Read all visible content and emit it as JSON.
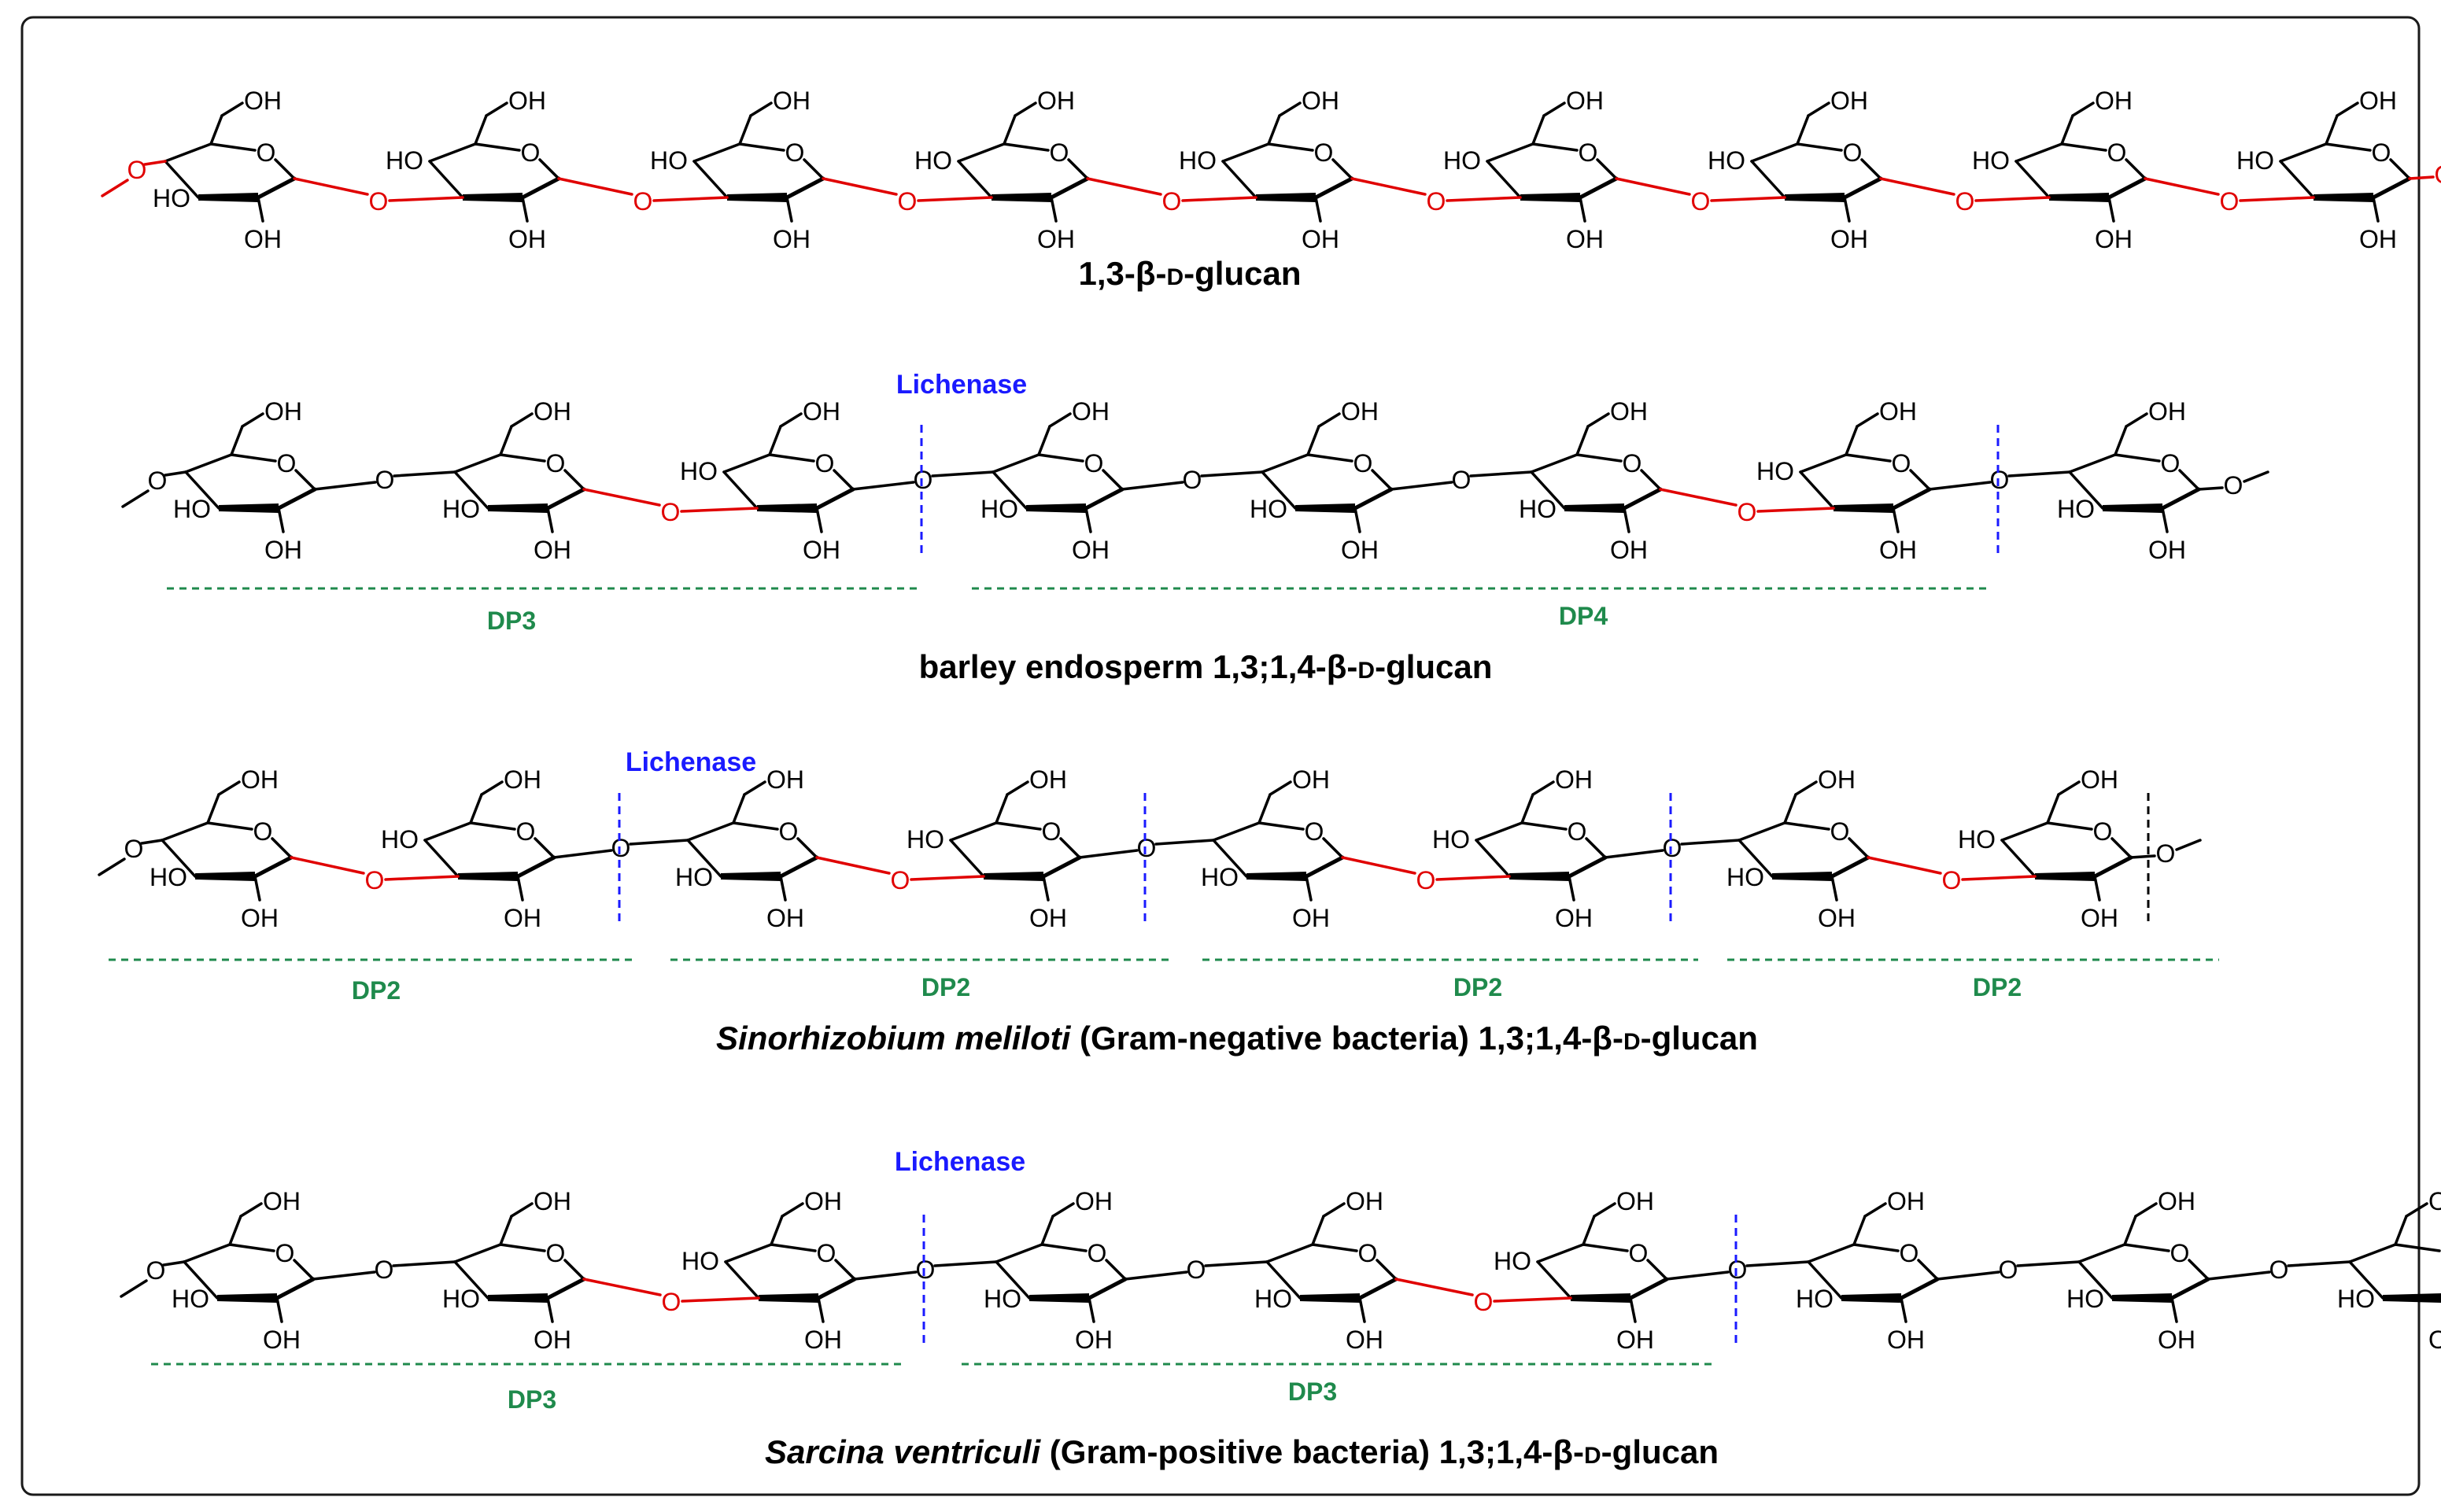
{
  "colors": {
    "frame": "#1a1a1a",
    "bond": "#000000",
    "linkage13": "#e00000",
    "cleavage": "#1a1aff",
    "dp": "#1f8a4c"
  },
  "atom_labels": {
    "oxygen": "O",
    "hydroxyl": "OH",
    "hydroxyl_left": "HO"
  },
  "enzyme": "Lichenase",
  "dp_labels": {
    "dp2": "DP2",
    "dp3": "DP3",
    "dp4": "DP4"
  },
  "captions": {
    "row1": {
      "main": "1,3-β-",
      "d": "D",
      "tail": "-glucan"
    },
    "row2": {
      "main": "barley endosperm 1,3;1,4-β-",
      "d": "D",
      "tail": "-glucan"
    },
    "row3": {
      "species": "Sinorhizobium meliloti",
      "main": " (Gram-negative bacteria) 1,3;1,4-β-",
      "d": "D",
      "tail": "-glucan"
    },
    "row4": {
      "species": "Sarcina ventriculi",
      "main": " (Gram-positive bacteria) 1,3;1,4-β-",
      "d": "D",
      "tail": "-glucan"
    }
  },
  "rows": [
    {
      "name": "1-3-beta-glucan",
      "units": 9,
      "linkages": [
        "13",
        "13",
        "13",
        "13",
        "13",
        "13",
        "13",
        "13"
      ],
      "cut_after": []
    },
    {
      "name": "barley-glucan",
      "units": 8,
      "linkages": [
        "14",
        "13",
        "14",
        "14",
        "14",
        "13",
        "14"
      ],
      "cut_after": [
        3,
        7
      ],
      "dp": [
        "DP3",
        "DP4"
      ]
    },
    {
      "name": "sinorhizobium-glucan",
      "units": 8,
      "linkages": [
        "13",
        "14",
        "13",
        "14",
        "13",
        "14",
        "13"
      ],
      "cut_after": [
        2,
        4,
        6,
        8
      ],
      "dp": [
        "DP2",
        "DP2",
        "DP2",
        "DP2"
      ]
    },
    {
      "name": "sarcina-glucan",
      "units": 9,
      "linkages": [
        "14",
        "13",
        "14",
        "14",
        "13",
        "14",
        "14",
        "14"
      ],
      "cut_after": [
        3,
        6
      ],
      "dp": [
        "DP3",
        "DP3"
      ]
    }
  ]
}
